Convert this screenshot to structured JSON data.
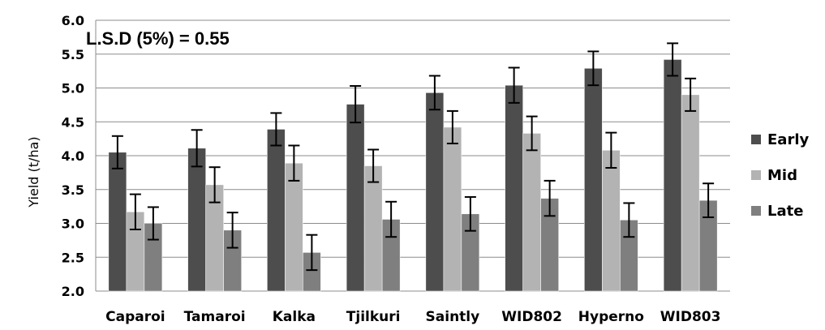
{
  "chart_data": {
    "type": "bar",
    "annotation": "L.S.D (5%) = 0.55",
    "ylabel": "Yield (t/ha)",
    "xlabel": "",
    "ylim": [
      2.0,
      6.0
    ],
    "yticks": [
      "2.0",
      "2.5",
      "3.0",
      "3.5",
      "4.0",
      "4.5",
      "5.0",
      "5.5",
      "6.0"
    ],
    "grid": true,
    "legend_position": "right",
    "categories": [
      "Caparoi",
      "Tamaroi",
      "Kalka",
      "Tjilkuri",
      "Saintly",
      "WID802",
      "Hyperno",
      "WID803"
    ],
    "series": [
      {
        "name": "Early",
        "color": "#4d4d4d",
        "values": [
          4.05,
          4.11,
          4.39,
          4.76,
          4.93,
          5.04,
          5.29,
          5.42
        ],
        "errors": [
          0.24,
          0.27,
          0.24,
          0.27,
          0.25,
          0.26,
          0.25,
          0.24
        ]
      },
      {
        "name": "Mid",
        "color": "#b3b3b3",
        "values": [
          3.17,
          3.57,
          3.89,
          3.85,
          4.42,
          4.33,
          4.08,
          4.9
        ],
        "errors": [
          0.26,
          0.26,
          0.26,
          0.24,
          0.24,
          0.25,
          0.26,
          0.24
        ]
      },
      {
        "name": "Late",
        "color": "#7f7f7f",
        "values": [
          3.0,
          2.9,
          2.57,
          3.06,
          3.14,
          3.37,
          3.05,
          3.34
        ],
        "errors": [
          0.24,
          0.26,
          0.26,
          0.26,
          0.25,
          0.26,
          0.25,
          0.25
        ]
      }
    ]
  }
}
